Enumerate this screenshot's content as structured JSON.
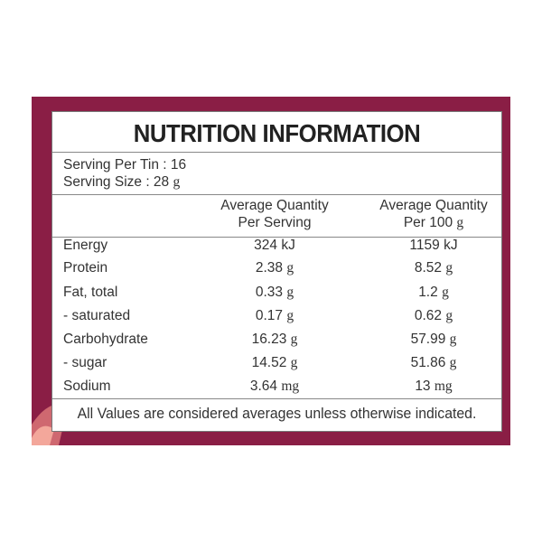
{
  "title": "NUTRITION INFORMATION",
  "serving_per_tin": "Serving Per Tin : 16",
  "serving_size": {
    "label": "Serving Size : 28",
    "unit": "g"
  },
  "columns": [
    {
      "line1": "Average Quantity",
      "line2": "Per Serving",
      "unit": ""
    },
    {
      "line1": "Average Quantity",
      "line2": "Per 100",
      "unit": "g"
    }
  ],
  "rows": [
    {
      "name": "Energy",
      "per_serving": {
        "value": "324 kJ",
        "unit": ""
      },
      "per_100g": {
        "value": "1159 kJ",
        "unit": ""
      }
    },
    {
      "name": "Protein",
      "per_serving": {
        "value": "2.38",
        "unit": "g"
      },
      "per_100g": {
        "value": "8.52",
        "unit": "g"
      }
    },
    {
      "name": "Fat, total",
      "per_serving": {
        "value": "0.33",
        "unit": "g"
      },
      "per_100g": {
        "value": "1.2",
        "unit": "g"
      }
    },
    {
      "name": "- saturated",
      "per_serving": {
        "value": "0.17",
        "unit": "g"
      },
      "per_100g": {
        "value": "0.62",
        "unit": "g"
      }
    },
    {
      "name": "Carbohydrate",
      "per_serving": {
        "value": "16.23",
        "unit": "g"
      },
      "per_100g": {
        "value": "57.99",
        "unit": "g"
      }
    },
    {
      "name": "- sugar",
      "per_serving": {
        "value": "14.52",
        "unit": "g"
      },
      "per_100g": {
        "value": "51.86",
        "unit": "g"
      }
    },
    {
      "name": "Sodium",
      "per_serving": {
        "value": "3.64",
        "unit": "mg"
      },
      "per_100g": {
        "value": "13",
        "unit": "mg"
      }
    }
  ],
  "footer": "All Values are considered averages unless otherwise indicated."
}
